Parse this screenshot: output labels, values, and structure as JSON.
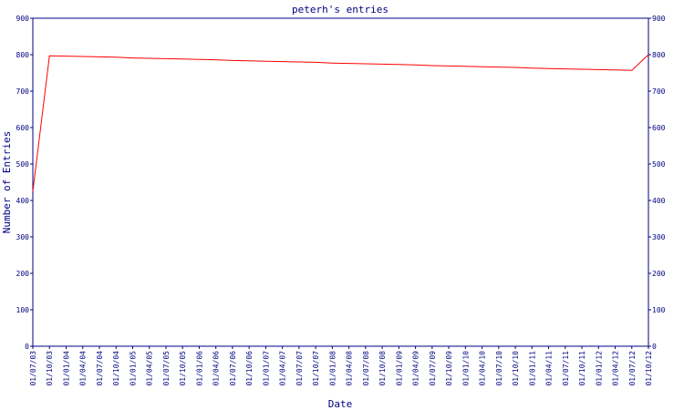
{
  "chart_data": {
    "type": "line",
    "title": "peterh's entries",
    "x_label": "Date",
    "y_label": "Number of Entries",
    "categories": [
      "01/07/03",
      "01/10/03",
      "01/01/04",
      "01/04/04",
      "01/07/04",
      "01/10/04",
      "01/01/05",
      "01/04/05",
      "01/07/05",
      "01/10/05",
      "01/01/06",
      "01/04/06",
      "01/07/06",
      "01/10/06",
      "01/01/07",
      "01/04/07",
      "01/07/07",
      "01/10/07",
      "01/01/08",
      "01/04/08",
      "01/07/08",
      "01/10/08",
      "01/01/09",
      "01/04/09",
      "01/07/09",
      "01/10/09",
      "01/01/10",
      "01/04/10",
      "01/07/10",
      "01/10/10",
      "01/01/11",
      "01/04/11",
      "01/07/11",
      "01/10/11",
      "01/01/12",
      "01/04/12",
      "01/07/12",
      "01/10/12"
    ],
    "series": [
      {
        "name": "peterh",
        "color": "#ff0000",
        "values": [
          425,
          797,
          796,
          795,
          794,
          793,
          791,
          790,
          789,
          788,
          787,
          786,
          784,
          783,
          782,
          781,
          780,
          779,
          777,
          776,
          775,
          774,
          773,
          772,
          770,
          769,
          768,
          767,
          766,
          765,
          763,
          762,
          761,
          760,
          759,
          758,
          757,
          800
        ]
      }
    ],
    "ylim": [
      0,
      900
    ],
    "yticks": [
      0,
      100,
      200,
      300,
      400,
      500,
      600,
      700,
      800,
      900
    ],
    "axis_color": "#000080"
  }
}
